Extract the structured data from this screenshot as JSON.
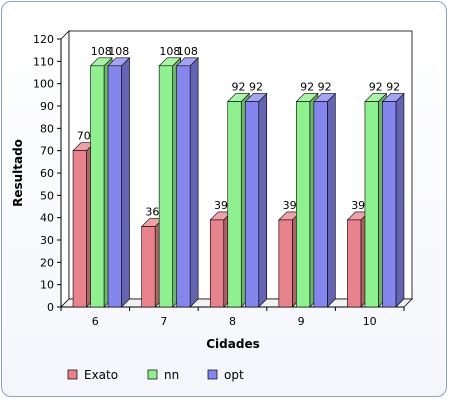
{
  "chart_data": {
    "type": "bar",
    "xlabel": "Cidades",
    "ylabel": "Resultado",
    "categories": [
      "6",
      "7",
      "8",
      "9",
      "10"
    ],
    "ylim": [
      0,
      120
    ],
    "yticks": [
      0,
      10,
      20,
      30,
      40,
      50,
      60,
      70,
      80,
      90,
      100,
      110,
      120
    ],
    "grid": false,
    "legend_position": "bottom",
    "series": [
      {
        "name": "Exato",
        "values": [
          70,
          36,
          39,
          39,
          39
        ],
        "color": "#e8828c"
      },
      {
        "name": "nn",
        "values": [
          108,
          108,
          92,
          92,
          92
        ],
        "color": "#8ef08e"
      },
      {
        "name": "opt",
        "values": [
          108,
          108,
          92,
          92,
          92
        ],
        "color": "#8585ee"
      }
    ]
  }
}
